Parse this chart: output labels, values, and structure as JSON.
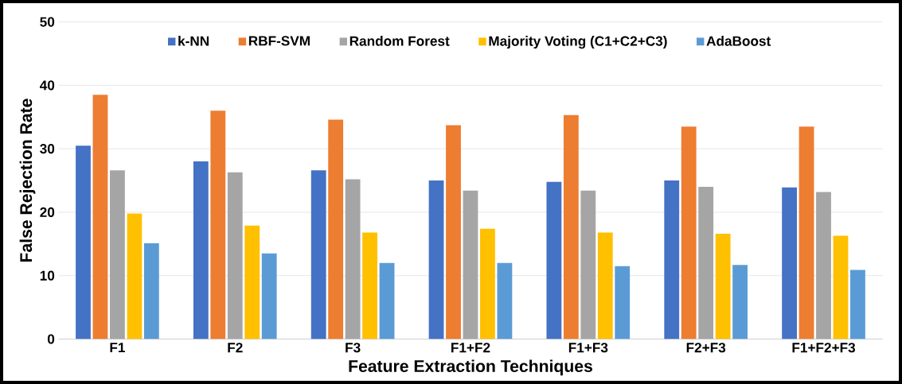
{
  "chart_data": {
    "type": "bar",
    "xlabel": "Feature Extraction Techniques",
    "ylabel": "False Rejection Rate",
    "categories": [
      "F1",
      "F2",
      "F3",
      "F1+F2",
      "F1+F3",
      "F2+F3",
      "F1+F2+F3"
    ],
    "series": [
      {
        "name": "k-NN",
        "color": "#4472c4",
        "values": [
          30.5,
          28,
          26.6,
          25,
          24.8,
          25,
          23.9
        ]
      },
      {
        "name": "RBF-SVM",
        "color": "#ed7d31",
        "values": [
          38.5,
          36,
          34.6,
          33.7,
          35.3,
          33.5,
          33.5
        ]
      },
      {
        "name": "Random Forest",
        "color": "#a5a5a5",
        "values": [
          26.6,
          26.3,
          25.2,
          23.4,
          23.4,
          24,
          23.2
        ]
      },
      {
        "name": "Majority Voting (C1+C2+C3)",
        "color": "#ffc000",
        "values": [
          19.8,
          17.9,
          16.8,
          17.4,
          16.8,
          16.6,
          16.3
        ]
      },
      {
        "name": "AdaBoost",
        "color": "#5b9bd5",
        "values": [
          15.1,
          13.5,
          12,
          12,
          11.5,
          11.7,
          10.9
        ]
      }
    ],
    "ylim": [
      0,
      50
    ],
    "yticks": [
      0,
      10,
      20,
      30,
      40,
      50
    ],
    "grid": "y",
    "legend": "top"
  }
}
